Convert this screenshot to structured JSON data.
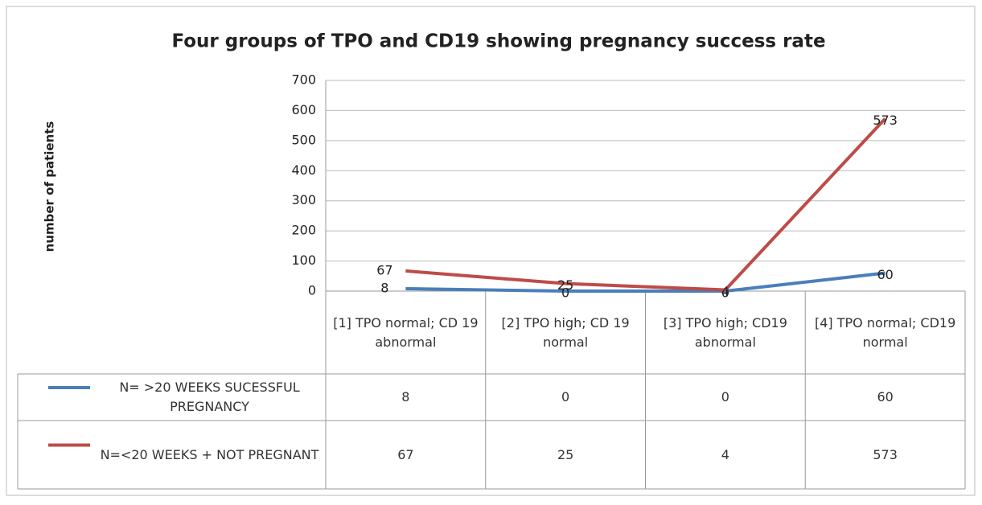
{
  "chart_data": {
    "type": "line",
    "title": "Four groups of TPO and CD19 showing pregnancy success rate",
    "y_label": "number of patients",
    "categories": [
      "[1] TPO normal; CD 19 abnormal",
      "[2]  TPO high; CD 19 normal",
      "[3]  TPO high; CD19 abnormal",
      "[4]  TPO normal; CD19 normal"
    ],
    "series": [
      {
        "name": "N= >20 WEEKS SUCESSFUL PREGNANCY",
        "color": "#4a7ebb",
        "values": [
          8,
          0,
          0,
          60
        ]
      },
      {
        "name": "N=<20 WEEKS + NOT PREGNANT",
        "color": "#be4b48",
        "values": [
          67,
          25,
          4,
          573
        ]
      }
    ],
    "ylim": [
      0,
      700
    ],
    "yticks": [
      0,
      100,
      200,
      300,
      400,
      500,
      600,
      700
    ],
    "grid": true
  }
}
